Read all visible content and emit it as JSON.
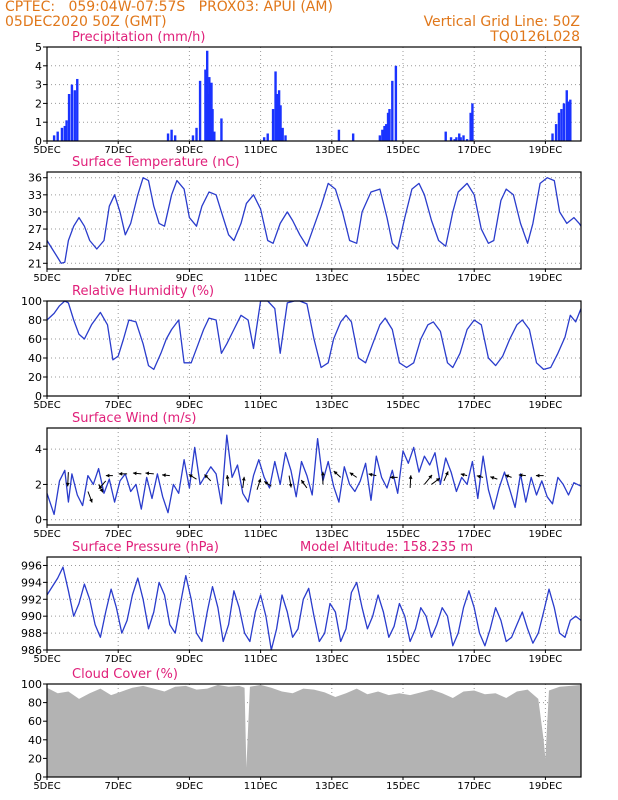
{
  "header": {
    "line1_left": "CPTEC:   059:04W-07:57S   PROX03: APUI (AM)",
    "line2_left": "05DEC2020 50Z (GMT)",
    "line1_right": "Vertical Grid Line: 50Z",
    "line2_right": "TQ0126L028"
  },
  "colors": {
    "header": "#e0771a",
    "title": "#e0207a",
    "line": "#2a3ccc",
    "bar": "#1a33ff",
    "cloud": "#b3b3b3",
    "grid": "#9a9a9a"
  },
  "x_axis": {
    "ticks": [
      0,
      2,
      4,
      6,
      8,
      10,
      12,
      14
    ],
    "tick_labels": [
      "5DEC",
      "7DEC",
      "9DEC",
      "11DEC",
      "13DEC",
      "15DEC",
      "17DEC",
      "19DEC"
    ],
    "range": [
      0,
      15
    ],
    "day_zero": "5DEC"
  },
  "chart_data": [
    {
      "id": "precip",
      "type": "bar",
      "title": "Precipitation (mm/h)",
      "ylim": [
        0,
        5
      ],
      "yticks": [
        0,
        1,
        2,
        3,
        4,
        5
      ],
      "x": [
        0.2,
        0.3,
        0.42,
        0.5,
        0.55,
        0.62,
        0.7,
        0.78,
        0.85,
        3.4,
        3.5,
        3.6,
        4.1,
        4.2,
        4.3,
        4.45,
        4.5,
        4.53,
        4.56,
        4.59,
        4.62,
        4.65,
        4.7,
        4.9,
        6.1,
        6.2,
        6.35,
        6.42,
        6.48,
        6.52,
        6.56,
        6.62,
        6.7,
        8.2,
        8.6,
        9.35,
        9.42,
        9.48,
        9.53,
        9.58,
        9.62,
        9.7,
        9.8,
        11.2,
        11.35,
        11.45,
        11.5,
        11.58,
        11.62,
        11.7,
        11.8,
        11.9,
        11.95,
        14.2,
        14.3,
        14.38,
        14.45,
        14.52,
        14.6,
        14.65,
        14.7
      ],
      "values": [
        0.3,
        0.5,
        0.7,
        0.8,
        1.1,
        2.5,
        3.0,
        2.7,
        3.3,
        0.4,
        0.6,
        0.3,
        0.3,
        0.7,
        3.2,
        3.8,
        4.8,
        2.5,
        3.4,
        2.9,
        3.1,
        1.7,
        0.5,
        1.2,
        0.2,
        0.4,
        1.7,
        3.7,
        2.5,
        2.7,
        1.9,
        0.7,
        0.3,
        0.6,
        0.4,
        0.3,
        0.6,
        0.8,
        0.9,
        1.5,
        1.7,
        3.2,
        4.0,
        0.5,
        0.2,
        0.1,
        0.2,
        0.4,
        0.2,
        0.3,
        0.1,
        1.5,
        2.0,
        0.4,
        0.9,
        1.5,
        1.7,
        2.0,
        2.7,
        2.1,
        2.2
      ]
    },
    {
      "id": "temp",
      "type": "line",
      "title": "Surface Temperature (nC)",
      "ylim": [
        20,
        37
      ],
      "yticks": [
        21,
        24,
        27,
        30,
        33,
        36
      ],
      "x": [
        0,
        0.15,
        0.3,
        0.4,
        0.5,
        0.6,
        0.75,
        0.9,
        1.05,
        1.2,
        1.4,
        1.6,
        1.75,
        1.9,
        2.05,
        2.2,
        2.35,
        2.55,
        2.7,
        2.85,
        3.0,
        3.15,
        3.3,
        3.5,
        3.65,
        3.85,
        4.0,
        4.2,
        4.35,
        4.55,
        4.75,
        4.9,
        5.1,
        5.25,
        5.45,
        5.6,
        5.8,
        6.0,
        6.2,
        6.35,
        6.55,
        6.75,
        6.9,
        7.1,
        7.3,
        7.5,
        7.7,
        7.9,
        8.1,
        8.3,
        8.5,
        8.7,
        8.85,
        9.1,
        9.35,
        9.55,
        9.7,
        9.85,
        10.05,
        10.25,
        10.45,
        10.6,
        10.8,
        11.0,
        11.2,
        11.4,
        11.55,
        11.8,
        12.0,
        12.2,
        12.4,
        12.55,
        12.75,
        12.9,
        13.1,
        13.3,
        13.5,
        13.65,
        13.85,
        14.05,
        14.25,
        14.4,
        14.6,
        14.8,
        14.95,
        15.0
      ],
      "values": [
        25,
        23.5,
        22,
        21,
        21.2,
        25,
        27.5,
        29,
        27.5,
        25,
        23.5,
        25,
        31,
        33,
        30,
        26,
        28,
        33,
        36,
        35.5,
        31,
        28,
        27.5,
        33,
        35.5,
        34,
        29,
        27.5,
        31,
        33.5,
        33,
        30,
        26,
        25,
        28,
        31.5,
        33,
        30.5,
        25,
        24.5,
        28,
        30,
        28.5,
        26,
        24,
        27.5,
        31,
        35,
        34,
        30,
        25,
        24.5,
        30,
        33.5,
        34,
        29,
        24.5,
        23.5,
        29,
        34,
        35,
        33,
        28.5,
        25,
        24,
        30,
        33.5,
        35,
        33,
        27,
        24.5,
        25,
        32,
        34,
        33,
        28,
        24.5,
        28,
        35,
        36,
        35.5,
        30,
        28,
        29,
        28,
        27.5
      ]
    },
    {
      "id": "rh",
      "type": "line",
      "title": "Relative Humidity (%)",
      "ylim": [
        0,
        100
      ],
      "yticks": [
        0,
        20,
        40,
        60,
        80,
        100
      ],
      "x": [
        0,
        0.2,
        0.35,
        0.5,
        0.6,
        0.75,
        0.9,
        1.05,
        1.25,
        1.5,
        1.7,
        1.85,
        2.0,
        2.15,
        2.3,
        2.5,
        2.7,
        2.85,
        3.0,
        3.2,
        3.35,
        3.5,
        3.7,
        3.85,
        4.05,
        4.25,
        4.4,
        4.55,
        4.75,
        4.9,
        5.05,
        5.25,
        5.45,
        5.65,
        5.8,
        6.0,
        6.2,
        6.4,
        6.55,
        6.75,
        6.95,
        7.1,
        7.3,
        7.5,
        7.7,
        7.9,
        8.05,
        8.25,
        8.4,
        8.55,
        8.75,
        8.95,
        9.15,
        9.35,
        9.5,
        9.7,
        9.9,
        10.1,
        10.3,
        10.5,
        10.7,
        10.85,
        11.05,
        11.25,
        11.4,
        11.6,
        11.8,
        12.0,
        12.2,
        12.4,
        12.6,
        12.8,
        13.0,
        13.2,
        13.35,
        13.55,
        13.75,
        13.95,
        14.15,
        14.35,
        14.55,
        14.7,
        14.85,
        15.0
      ],
      "values": [
        80,
        87,
        95,
        100,
        98,
        80,
        65,
        60,
        75,
        88,
        75,
        38,
        42,
        60,
        80,
        78,
        55,
        32,
        28,
        45,
        60,
        70,
        80,
        35,
        35,
        55,
        70,
        82,
        80,
        45,
        55,
        70,
        85,
        80,
        50,
        100,
        100,
        92,
        45,
        98,
        100,
        100,
        97,
        60,
        30,
        35,
        60,
        78,
        85,
        78,
        40,
        35,
        55,
        75,
        82,
        70,
        35,
        30,
        35,
        60,
        75,
        78,
        68,
        35,
        30,
        45,
        70,
        80,
        75,
        40,
        32,
        42,
        60,
        75,
        80,
        70,
        35,
        28,
        30,
        45,
        62,
        85,
        78,
        92
      ]
    },
    {
      "id": "wind",
      "type": "line",
      "title": "Surface Wind (m/s)",
      "ylim": [
        -0.3,
        5.2
      ],
      "yticks": [
        0,
        2,
        4
      ],
      "x": [
        0,
        0.2,
        0.35,
        0.5,
        0.6,
        0.7,
        0.85,
        1.0,
        1.15,
        1.3,
        1.45,
        1.6,
        1.75,
        1.9,
        2.05,
        2.2,
        2.35,
        2.5,
        2.65,
        2.8,
        2.95,
        3.1,
        3.25,
        3.4,
        3.55,
        3.7,
        3.85,
        4.0,
        4.15,
        4.3,
        4.45,
        4.6,
        4.75,
        4.9,
        5.05,
        5.2,
        5.35,
        5.5,
        5.65,
        5.8,
        5.95,
        6.1,
        6.25,
        6.4,
        6.55,
        6.7,
        6.85,
        7.0,
        7.15,
        7.3,
        7.45,
        7.6,
        7.75,
        7.9,
        8.05,
        8.2,
        8.35,
        8.5,
        8.65,
        8.8,
        8.95,
        9.1,
        9.25,
        9.4,
        9.55,
        9.7,
        9.85,
        10.0,
        10.15,
        10.3,
        10.45,
        10.6,
        10.75,
        10.9,
        11.05,
        11.2,
        11.35,
        11.5,
        11.65,
        11.8,
        11.95,
        12.1,
        12.25,
        12.4,
        12.55,
        12.7,
        12.85,
        13.0,
        13.15,
        13.3,
        13.45,
        13.6,
        13.75,
        13.9,
        14.05,
        14.2,
        14.35,
        14.5,
        14.65,
        14.8,
        15.0
      ],
      "values": [
        1.5,
        0.3,
        2.2,
        2.8,
        1.0,
        2.6,
        1.4,
        0.8,
        2.5,
        2.0,
        2.9,
        1.5,
        2.3,
        1.0,
        2.2,
        2.6,
        1.6,
        2.0,
        0.6,
        2.4,
        1.2,
        2.6,
        1.3,
        0.4,
        2.0,
        1.5,
        3.4,
        1.8,
        4.1,
        2.0,
        2.5,
        3.0,
        2.6,
        0.9,
        4.8,
        2.4,
        3.1,
        1.5,
        1.0,
        2.5,
        3.4,
        2.4,
        1.8,
        3.3,
        2.0,
        3.8,
        2.8,
        1.3,
        3.3,
        2.5,
        1.4,
        4.6,
        2.2,
        3.3,
        1.9,
        1.0,
        3.0,
        2.0,
        1.6,
        2.2,
        3.2,
        1.1,
        3.6,
        2.4,
        1.8,
        2.8,
        1.5,
        3.9,
        3.2,
        4.1,
        2.7,
        3.6,
        3.1,
        3.8,
        2.0,
        3.5,
        2.7,
        1.6,
        2.4,
        2.0,
        3.3,
        1.2,
        3.6,
        1.7,
        0.6,
        1.8,
        2.7,
        1.7,
        0.7,
        2.6,
        1.0,
        2.4,
        1.4,
        2.2,
        1.3,
        0.9,
        2.4,
        2.0,
        1.4,
        2.1,
        1.9
      ],
      "arrows": [
        [
          0.6,
          2.7,
          -0.05,
          -0.9
        ],
        [
          1.15,
          1.6,
          0.3,
          -0.7
        ],
        [
          1.45,
          2.0,
          0.3,
          -0.5
        ],
        [
          1.65,
          2.2,
          -0.5,
          -0.5
        ],
        [
          1.85,
          2.5,
          -0.5,
          0.0
        ],
        [
          2.25,
          2.6,
          -0.6,
          0.0
        ],
        [
          2.65,
          2.6,
          -0.6,
          0.05
        ],
        [
          3.0,
          2.6,
          -0.6,
          0.05
        ],
        [
          3.45,
          2.5,
          -0.55,
          0.05
        ],
        [
          4.2,
          2.3,
          -0.55,
          0.3
        ],
        [
          4.6,
          2.2,
          -0.45,
          0.4
        ],
        [
          5.1,
          1.9,
          -0.1,
          0.7
        ],
        [
          5.5,
          1.8,
          0.1,
          0.7
        ],
        [
          5.9,
          1.7,
          0.25,
          0.7
        ],
        [
          6.3,
          1.9,
          -0.5,
          0.3
        ],
        [
          6.8,
          2.5,
          0.15,
          -0.75
        ],
        [
          7.3,
          1.8,
          -0.4,
          0.5
        ],
        [
          7.75,
          2.0,
          0.0,
          0.8
        ],
        [
          8.25,
          2.4,
          -0.5,
          0.4
        ],
        [
          8.7,
          2.4,
          -0.5,
          0.3
        ],
        [
          9.25,
          2.5,
          -0.55,
          0.1
        ],
        [
          9.85,
          2.4,
          -0.55,
          0.0
        ],
        [
          10.2,
          1.8,
          0.05,
          0.8
        ],
        [
          10.6,
          2.0,
          0.55,
          0.6
        ],
        [
          10.8,
          2.0,
          0.6,
          0.4
        ],
        [
          11.15,
          2.2,
          0.3,
          0.6
        ],
        [
          11.8,
          2.5,
          -0.45,
          0.1
        ],
        [
          12.25,
          2.4,
          -0.45,
          0.1
        ],
        [
          12.65,
          2.3,
          -0.5,
          0.15
        ],
        [
          13.05,
          2.4,
          -0.45,
          0.15
        ],
        [
          13.45,
          2.5,
          -0.5,
          0.05
        ],
        [
          13.95,
          2.5,
          -0.55,
          0.0
        ]
      ]
    },
    {
      "id": "press",
      "type": "line",
      "title": "Surface Pressure (hPa)",
      "annotation": "Model Altitude: 158.235  m",
      "ylim": [
        986,
        997
      ],
      "yticks": [
        986,
        988,
        990,
        992,
        994,
        996
      ],
      "x": [
        0,
        0.15,
        0.3,
        0.45,
        0.6,
        0.75,
        0.9,
        1.05,
        1.2,
        1.35,
        1.5,
        1.65,
        1.8,
        1.95,
        2.1,
        2.25,
        2.4,
        2.55,
        2.7,
        2.85,
        3.0,
        3.15,
        3.3,
        3.45,
        3.6,
        3.75,
        3.9,
        4.05,
        4.2,
        4.35,
        4.5,
        4.65,
        4.8,
        4.95,
        5.1,
        5.25,
        5.4,
        5.55,
        5.7,
        5.85,
        6.0,
        6.15,
        6.3,
        6.45,
        6.6,
        6.75,
        6.9,
        7.05,
        7.2,
        7.35,
        7.5,
        7.65,
        7.8,
        7.95,
        8.1,
        8.25,
        8.4,
        8.55,
        8.7,
        8.85,
        9.0,
        9.15,
        9.3,
        9.45,
        9.6,
        9.75,
        9.9,
        10.05,
        10.2,
        10.35,
        10.5,
        10.65,
        10.8,
        10.95,
        11.1,
        11.25,
        11.4,
        11.55,
        11.7,
        11.85,
        12.0,
        12.15,
        12.3,
        12.45,
        12.6,
        12.75,
        12.9,
        13.05,
        13.2,
        13.35,
        13.5,
        13.65,
        13.8,
        13.95,
        14.1,
        14.25,
        14.4,
        14.55,
        14.7,
        14.85,
        15.0
      ],
      "values": [
        992.5,
        993.5,
        994.5,
        995.8,
        993.0,
        990.0,
        991.5,
        993.8,
        992.0,
        989.0,
        987.5,
        990.5,
        993.2,
        991.0,
        988.0,
        989.5,
        992.5,
        994.5,
        992.0,
        988.5,
        990.5,
        994.0,
        992.5,
        989.0,
        988.0,
        991.5,
        994.8,
        992.0,
        988.0,
        987.0,
        990.5,
        993.5,
        991.0,
        987.0,
        989.0,
        993.0,
        991.0,
        988.0,
        987.0,
        990.5,
        992.5,
        990.0,
        986.0,
        988.5,
        992.5,
        990.5,
        987.5,
        988.5,
        992.0,
        993.3,
        990.0,
        987.0,
        988.0,
        991.5,
        990.5,
        987.0,
        988.5,
        992.8,
        994.0,
        991.0,
        988.5,
        990.0,
        992.5,
        990.5,
        987.5,
        988.8,
        991.5,
        990.0,
        987.0,
        988.5,
        991.0,
        990.0,
        987.5,
        989.0,
        991.0,
        990.0,
        986.5,
        988.0,
        991.0,
        993.0,
        991.0,
        988.0,
        986.5,
        988.5,
        991.0,
        989.5,
        987.0,
        987.5,
        989.0,
        990.5,
        988.5,
        986.8,
        988.0,
        990.5,
        993.2,
        991.0,
        988.0,
        987.5,
        989.5,
        990.0,
        989.5
      ]
    },
    {
      "id": "cloud",
      "type": "area",
      "title": "Cloud Cover (%)",
      "ylim": [
        0,
        100
      ],
      "yticks": [
        0,
        20,
        40,
        60,
        80,
        100
      ],
      "x": [
        0,
        0.3,
        0.6,
        0.9,
        1.2,
        1.5,
        1.8,
        2.1,
        2.4,
        2.7,
        3.0,
        3.3,
        3.6,
        3.9,
        4.2,
        4.5,
        4.8,
        5.1,
        5.4,
        5.55,
        5.6,
        5.7,
        6.0,
        6.3,
        6.6,
        6.9,
        7.2,
        7.5,
        7.8,
        8.1,
        8.4,
        8.7,
        9.0,
        9.3,
        9.6,
        9.9,
        10.2,
        10.5,
        10.8,
        11.1,
        11.4,
        11.7,
        12.0,
        12.3,
        12.6,
        12.9,
        13.2,
        13.5,
        13.8,
        13.95,
        14.0,
        14.1,
        14.4,
        14.7,
        15.0
      ],
      "values": [
        96,
        90,
        92,
        84,
        90,
        95,
        88,
        92,
        96,
        98,
        95,
        92,
        97,
        98,
        94,
        95,
        99,
        97,
        98,
        96,
        10,
        97,
        99,
        96,
        92,
        90,
        95,
        94,
        91,
        86,
        90,
        95,
        89,
        92,
        88,
        90,
        88,
        91,
        94,
        90,
        85,
        92,
        93,
        89,
        90,
        85,
        92,
        94,
        84,
        40,
        20,
        93,
        97,
        98,
        99
      ]
    }
  ]
}
